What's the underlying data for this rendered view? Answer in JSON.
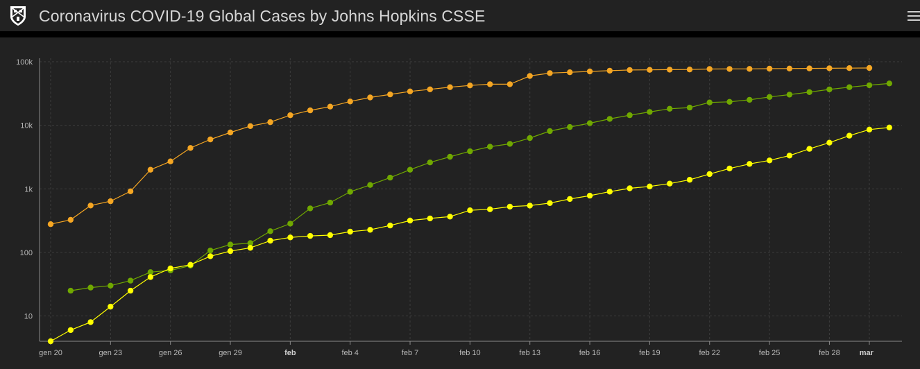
{
  "header": {
    "title": "Coronavirus COVID-19 Global Cases by Johns Hopkins CSSE",
    "logo_icon": "university-shield-icon",
    "menu_icon": "hamburger-menu-icon"
  },
  "colors": {
    "background": "#222222",
    "grid": "#3c3c3c",
    "axis": "#8a8a8a",
    "series_orange": "#f5a623",
    "series_green": "#70a800",
    "series_yellow": "#ffff00"
  },
  "chart_data": {
    "type": "line",
    "y_scale": "log",
    "ylim": [
      4,
      100000
    ],
    "y_ticks": [
      {
        "value": 10,
        "label": "10"
      },
      {
        "value": 100,
        "label": "100"
      },
      {
        "value": 1000,
        "label": "1k"
      },
      {
        "value": 10000,
        "label": "10k"
      },
      {
        "value": 100000,
        "label": "100k"
      }
    ],
    "x_ticks": [
      {
        "date": "2020-01-20",
        "label": "gen 20",
        "bold": false
      },
      {
        "date": "2020-01-23",
        "label": "gen 23",
        "bold": false
      },
      {
        "date": "2020-01-26",
        "label": "gen 26",
        "bold": false
      },
      {
        "date": "2020-01-29",
        "label": "gen 29",
        "bold": false
      },
      {
        "date": "2020-02-01",
        "label": "feb",
        "bold": true
      },
      {
        "date": "2020-02-04",
        "label": "feb 4",
        "bold": false
      },
      {
        "date": "2020-02-07",
        "label": "feb 7",
        "bold": false
      },
      {
        "date": "2020-02-10",
        "label": "feb 10",
        "bold": false
      },
      {
        "date": "2020-02-13",
        "label": "feb 13",
        "bold": false
      },
      {
        "date": "2020-02-16",
        "label": "feb 16",
        "bold": false
      },
      {
        "date": "2020-02-19",
        "label": "feb 19",
        "bold": false
      },
      {
        "date": "2020-02-22",
        "label": "feb 22",
        "bold": false
      },
      {
        "date": "2020-02-25",
        "label": "feb 25",
        "bold": false
      },
      {
        "date": "2020-02-28",
        "label": "feb 28",
        "bold": false
      },
      {
        "date": "2020-03-01",
        "label": "mar",
        "bold": true
      }
    ],
    "grid": true,
    "series": [
      {
        "color": "orange",
        "points": [
          [
            "2020-01-20",
            278
          ],
          [
            "2020-01-21",
            326
          ],
          [
            "2020-01-22",
            547
          ],
          [
            "2020-01-23",
            639
          ],
          [
            "2020-01-24",
            916
          ],
          [
            "2020-01-25",
            2000
          ],
          [
            "2020-01-26",
            2700
          ],
          [
            "2020-01-27",
            4400
          ],
          [
            "2020-01-28",
            6000
          ],
          [
            "2020-01-29",
            7700
          ],
          [
            "2020-01-30",
            9700
          ],
          [
            "2020-01-31",
            11200
          ],
          [
            "2020-02-01",
            14400
          ],
          [
            "2020-02-02",
            17200
          ],
          [
            "2020-02-03",
            19700
          ],
          [
            "2020-02-04",
            23700
          ],
          [
            "2020-02-05",
            27400
          ],
          [
            "2020-02-06",
            30600
          ],
          [
            "2020-02-07",
            34100
          ],
          [
            "2020-02-08",
            36800
          ],
          [
            "2020-02-09",
            39800
          ],
          [
            "2020-02-10",
            42300
          ],
          [
            "2020-02-11",
            44300
          ],
          [
            "2020-02-12",
            44300
          ],
          [
            "2020-02-13",
            59800
          ],
          [
            "2020-02-14",
            66300
          ],
          [
            "2020-02-15",
            68300
          ],
          [
            "2020-02-16",
            70400
          ],
          [
            "2020-02-17",
            72400
          ],
          [
            "2020-02-18",
            74100
          ],
          [
            "2020-02-19",
            74500
          ],
          [
            "2020-02-20",
            75000
          ],
          [
            "2020-02-21",
            75500
          ],
          [
            "2020-02-22",
            76900
          ],
          [
            "2020-02-23",
            77000
          ],
          [
            "2020-02-24",
            77200
          ],
          [
            "2020-02-25",
            77700
          ],
          [
            "2020-02-26",
            78200
          ],
          [
            "2020-02-27",
            78600
          ],
          [
            "2020-02-28",
            78900
          ],
          [
            "2020-02-29",
            79300
          ],
          [
            "2020-03-01",
            79800
          ]
        ]
      },
      {
        "color": "green",
        "points": [
          [
            "2020-01-21",
            25
          ],
          [
            "2020-01-22",
            28
          ],
          [
            "2020-01-23",
            30
          ],
          [
            "2020-01-24",
            36
          ],
          [
            "2020-01-25",
            49
          ],
          [
            "2020-01-26",
            52
          ],
          [
            "2020-01-27",
            62
          ],
          [
            "2020-01-28",
            107
          ],
          [
            "2020-01-29",
            133
          ],
          [
            "2020-01-30",
            140
          ],
          [
            "2020-01-31",
            216
          ],
          [
            "2020-02-01",
            284
          ],
          [
            "2020-02-02",
            493
          ],
          [
            "2020-02-03",
            608
          ],
          [
            "2020-02-04",
            900
          ],
          [
            "2020-02-05",
            1150
          ],
          [
            "2020-02-06",
            1500
          ],
          [
            "2020-02-07",
            2000
          ],
          [
            "2020-02-08",
            2600
          ],
          [
            "2020-02-09",
            3200
          ],
          [
            "2020-02-10",
            3900
          ],
          [
            "2020-02-11",
            4600
          ],
          [
            "2020-02-12",
            5100
          ],
          [
            "2020-02-13",
            6300
          ],
          [
            "2020-02-14",
            8100
          ],
          [
            "2020-02-15",
            9400
          ],
          [
            "2020-02-16",
            10800
          ],
          [
            "2020-02-17",
            12600
          ],
          [
            "2020-02-18",
            14400
          ],
          [
            "2020-02-19",
            16200
          ],
          [
            "2020-02-20",
            18200
          ],
          [
            "2020-02-21",
            19000
          ],
          [
            "2020-02-22",
            22900
          ],
          [
            "2020-02-23",
            23400
          ],
          [
            "2020-02-24",
            25200
          ],
          [
            "2020-02-25",
            27900
          ],
          [
            "2020-02-26",
            30400
          ],
          [
            "2020-02-27",
            33300
          ],
          [
            "2020-02-28",
            36700
          ],
          [
            "2020-02-29",
            39800
          ],
          [
            "2020-03-01",
            42700
          ],
          [
            "2020-03-02",
            45600
          ]
        ]
      },
      {
        "color": "yellow",
        "points": [
          [
            "2020-01-20",
            4
          ],
          [
            "2020-01-21",
            6
          ],
          [
            "2020-01-22",
            8
          ],
          [
            "2020-01-23",
            14
          ],
          [
            "2020-01-24",
            25
          ],
          [
            "2020-01-25",
            41
          ],
          [
            "2020-01-26",
            56
          ],
          [
            "2020-01-27",
            64
          ],
          [
            "2020-01-28",
            87
          ],
          [
            "2020-01-29",
            105
          ],
          [
            "2020-01-30",
            118
          ],
          [
            "2020-01-31",
            153
          ],
          [
            "2020-02-01",
            172
          ],
          [
            "2020-02-02",
            182
          ],
          [
            "2020-02-03",
            187
          ],
          [
            "2020-02-04",
            212
          ],
          [
            "2020-02-05",
            227
          ],
          [
            "2020-02-06",
            265
          ],
          [
            "2020-02-07",
            317
          ],
          [
            "2020-02-08",
            343
          ],
          [
            "2020-02-09",
            366
          ],
          [
            "2020-02-10",
            460
          ],
          [
            "2020-02-11",
            477
          ],
          [
            "2020-02-12",
            525
          ],
          [
            "2020-02-13",
            545
          ],
          [
            "2020-02-14",
            597
          ],
          [
            "2020-02-15",
            693
          ],
          [
            "2020-02-16",
            781
          ],
          [
            "2020-02-17",
            904
          ],
          [
            "2020-02-18",
            1020
          ],
          [
            "2020-02-19",
            1090
          ],
          [
            "2020-02-20",
            1210
          ],
          [
            "2020-02-21",
            1390
          ],
          [
            "2020-02-22",
            1710
          ],
          [
            "2020-02-23",
            2090
          ],
          [
            "2020-02-24",
            2470
          ],
          [
            "2020-02-25",
            2800
          ],
          [
            "2020-02-26",
            3340
          ],
          [
            "2020-02-27",
            4260
          ],
          [
            "2020-02-28",
            5330
          ],
          [
            "2020-02-29",
            6860
          ],
          [
            "2020-03-01",
            8560
          ],
          [
            "2020-03-02",
            9230
          ]
        ]
      }
    ]
  }
}
